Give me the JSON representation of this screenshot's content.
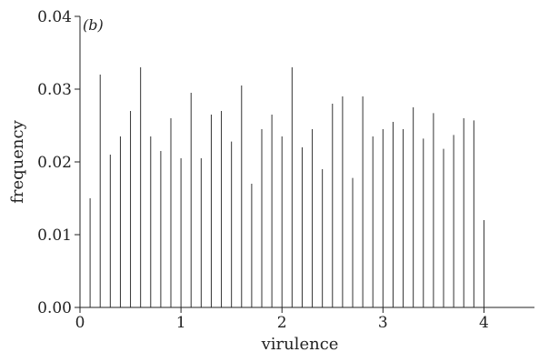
{
  "chart_data": {
    "type": "bar",
    "panel_label": "(b)",
    "xlabel": "virulence",
    "ylabel": "frequency",
    "xlim": [
      0,
      4.5
    ],
    "ylim": [
      0,
      0.04
    ],
    "x_ticks": [
      "0",
      "1",
      "2",
      "3",
      "4"
    ],
    "y_ticks": [
      "0.00",
      "0.01",
      "0.02",
      "0.03",
      "0.04"
    ],
    "grid": false,
    "x": [
      0.1,
      0.2,
      0.3,
      0.4,
      0.5,
      0.6,
      0.7,
      0.8,
      0.9,
      1.0,
      1.1,
      1.2,
      1.3,
      1.4,
      1.5,
      1.6,
      1.7,
      1.8,
      1.9,
      2.0,
      2.1,
      2.2,
      2.3,
      2.4,
      2.5,
      2.6,
      2.7,
      2.8,
      2.9,
      3.0,
      3.1,
      3.2,
      3.3,
      3.4,
      3.5,
      3.6,
      3.7,
      3.8,
      3.9,
      4.0
    ],
    "values": [
      0.015,
      0.032,
      0.021,
      0.0235,
      0.027,
      0.033,
      0.0235,
      0.0215,
      0.026,
      0.0205,
      0.0295,
      0.0205,
      0.0265,
      0.027,
      0.0228,
      0.0305,
      0.017,
      0.0245,
      0.0265,
      0.0235,
      0.033,
      0.022,
      0.0245,
      0.019,
      0.028,
      0.029,
      0.0178,
      0.029,
      0.0235,
      0.0245,
      0.0255,
      0.0245,
      0.0275,
      0.0232,
      0.0267,
      0.0218,
      0.0237,
      0.026,
      0.0257,
      0.012
    ]
  }
}
